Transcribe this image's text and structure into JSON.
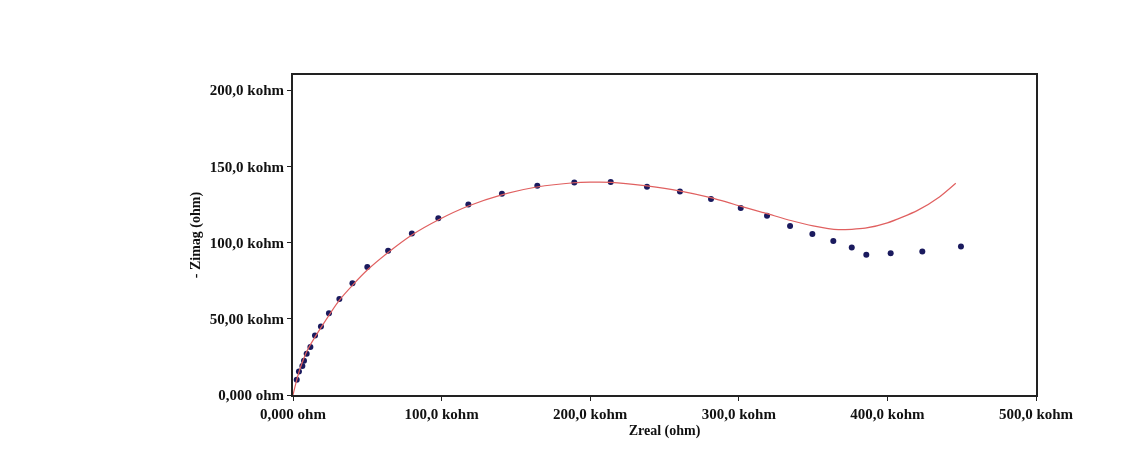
{
  "chart_data": {
    "type": "scatter",
    "xlabel": "Zreal (ohm)",
    "ylabel": "- Zimag (ohm)",
    "xlim": [
      0,
      500
    ],
    "ylim": [
      0,
      210
    ],
    "xticks": [
      {
        "value": 0,
        "label": "0,000 ohm"
      },
      {
        "value": 100,
        "label": "100,0 kohm"
      },
      {
        "value": 200,
        "label": "200,0 kohm"
      },
      {
        "value": 300,
        "label": "300,0 kohm"
      },
      {
        "value": 400,
        "label": "400,0 kohm"
      },
      {
        "value": 500,
        "label": "500,0 kohm"
      }
    ],
    "yticks": [
      {
        "value": 0,
        "label": "0,000 ohm"
      },
      {
        "value": 50,
        "label": "50,00 kohm"
      },
      {
        "value": 100,
        "label": "100,0 kohm"
      },
      {
        "value": 150,
        "label": "150,0 kohm"
      },
      {
        "value": 200,
        "label": "200,0 kohm"
      }
    ],
    "series": [
      {
        "marker": "circle",
        "color": "#1a1a5e",
        "x": [
          2.5,
          4,
          6.3,
          7.4,
          9.2,
          11.7,
          14.8,
          18.8,
          24.2,
          31.2,
          40,
          50,
          64,
          80,
          97.8,
          118,
          140.6,
          164.4,
          189.3,
          213.8,
          238.2,
          260.4,
          281.3,
          301.3,
          319,
          334.5,
          349.5,
          363.6,
          376,
          385.8,
          402.2,
          423.5,
          449.5
        ],
        "values": [
          10,
          15.4,
          19,
          22.4,
          27,
          31.5,
          39,
          45,
          53.7,
          63,
          73.3,
          84,
          94.6,
          106,
          116,
          125,
          132,
          137.3,
          139.5,
          139.7,
          136.6,
          133.5,
          128.7,
          122.8,
          117.7,
          110.9,
          105.6,
          101,
          96.8,
          92,
          93,
          94.2,
          97.5
        ]
      },
      {
        "type": "line",
        "color": "#e06060",
        "line_style": "solid",
        "x": [
          0,
          2,
          5,
          10,
          20,
          31,
          40,
          50,
          64,
          80,
          98,
          118,
          141,
          164,
          189,
          200,
          214,
          238,
          260,
          281,
          301,
          319,
          335,
          350,
          367,
          385,
          400,
          420,
          435,
          446
        ],
        "values": [
          0,
          8,
          18,
          30,
          46,
          62,
          72,
          82,
          93.5,
          105,
          115,
          124,
          131.5,
          136.5,
          139.3,
          139.7,
          139.6,
          137.2,
          134,
          129.5,
          124,
          119,
          114.5,
          111,
          108.5,
          109.5,
          113,
          121,
          130,
          139
        ]
      }
    ]
  }
}
